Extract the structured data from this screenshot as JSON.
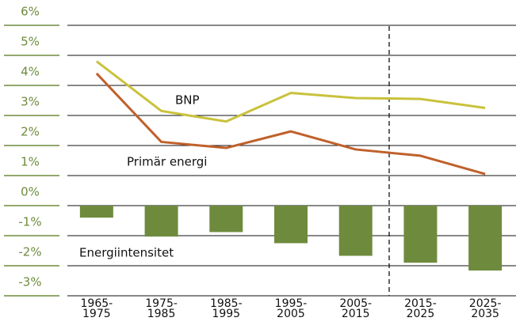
{
  "chart_data": {
    "type": "bar-line",
    "categories": [
      "1965-\n1975",
      "1975-\n1985",
      "1985-\n1995",
      "1995-\n2005",
      "2005-\n2015",
      "2015-\n2025",
      "2025-\n2035"
    ],
    "series": [
      {
        "name": "BNP",
        "type": "line",
        "color": "#c9c23c",
        "values": [
          4.8,
          3.15,
          2.8,
          3.75,
          3.58,
          3.55,
          3.25
        ]
      },
      {
        "name": "Primär energi",
        "type": "line",
        "color": "#c0602b",
        "values": [
          4.4,
          2.12,
          1.92,
          2.47,
          1.87,
          1.66,
          1.05
        ]
      },
      {
        "name": "Energiintensitet",
        "type": "bar",
        "color": "#6e8b3d",
        "values": [
          -0.4,
          -1.03,
          -0.88,
          -1.25,
          -1.67,
          -1.9,
          -2.16
        ]
      }
    ],
    "ylim": [
      -3,
      6
    ],
    "yticks": [
      {
        "value": -3,
        "label": "-3%"
      },
      {
        "value": -2,
        "label": "-2%"
      },
      {
        "value": -1,
        "label": "-1%"
      },
      {
        "value": 0,
        "label": "0%"
      },
      {
        "value": 1,
        "label": "1%"
      },
      {
        "value": 2,
        "label": "2%"
      },
      {
        "value": 3,
        "label": "3%"
      },
      {
        "value": 4,
        "label": "4%"
      },
      {
        "value": 5,
        "label": "5%"
      },
      {
        "value": 6,
        "label": "6%"
      }
    ],
    "grid": true
  }
}
